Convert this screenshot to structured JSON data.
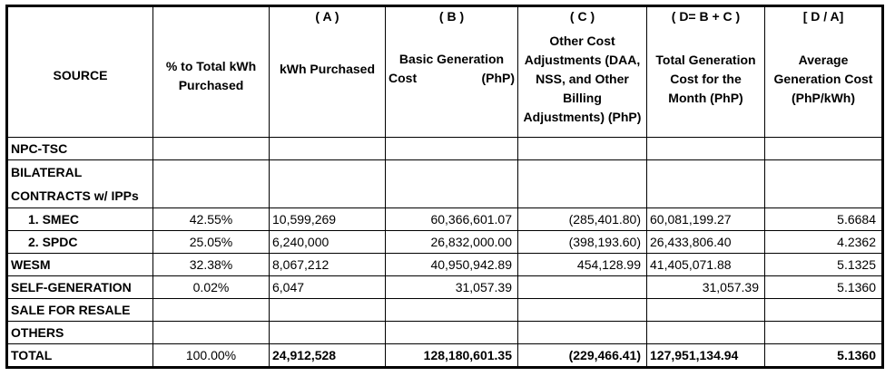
{
  "header": {
    "source": "SOURCE",
    "pct": "% to Total kWh Purchased",
    "kwh_letter": "( A )",
    "kwh": "kWh Purchased",
    "basic_letter": "( B )",
    "basic_a": "Basic Generation",
    "basic_b": "Cost",
    "basic_c": "(PhP)",
    "other_letter": "( C )",
    "other": "Other Cost Adjustments (DAA, NSS, and Other Billing Adjustments) (PhP)",
    "total_letter": "( D= B + C )",
    "total": "Total Generation Cost for the Month (PhP)",
    "avg_letter": "[ D / A]",
    "avg": "Average Generation Cost (PhP/kWh)"
  },
  "rows": {
    "npc": {
      "source": "NPC-TSC"
    },
    "bilateral": {
      "source_a": "BILATERAL",
      "source_b": "CONTRACTS w/ IPPs"
    },
    "smec": {
      "source": "1.  SMEC",
      "pct": "42.55%",
      "kwh": "10,599,269",
      "basic": "60,366,601.07",
      "other": "(285,401.80)",
      "total": "60,081,199.27",
      "avg": "5.6684"
    },
    "spdc": {
      "source": "2.  SPDC",
      "pct": "25.05%",
      "kwh": "6,240,000",
      "basic": "26,832,000.00",
      "other": "(398,193.60)",
      "total": "26,433,806.40",
      "avg": "4.2362"
    },
    "wesm": {
      "source": "WESM",
      "pct": "32.38%",
      "kwh": "8,067,212",
      "basic": "40,950,942.89",
      "other": "454,128.99",
      "total": "41,405,071.88",
      "avg": "5.1325"
    },
    "selfgen": {
      "source": "SELF-GENERATION",
      "pct": "0.02%",
      "kwh": "6,047",
      "basic": "31,057.39",
      "other": "",
      "total": "31,057.39",
      "avg": "5.1360"
    },
    "resale": {
      "source": "SALE FOR RESALE"
    },
    "others": {
      "source": "OTHERS"
    },
    "total": {
      "source": "TOTAL",
      "pct": "100.00%",
      "kwh": "24,912,528",
      "basic": "128,180,601.35",
      "other": "(229,466.41)",
      "total": "127,951,134.94",
      "avg": "5.1360"
    }
  }
}
